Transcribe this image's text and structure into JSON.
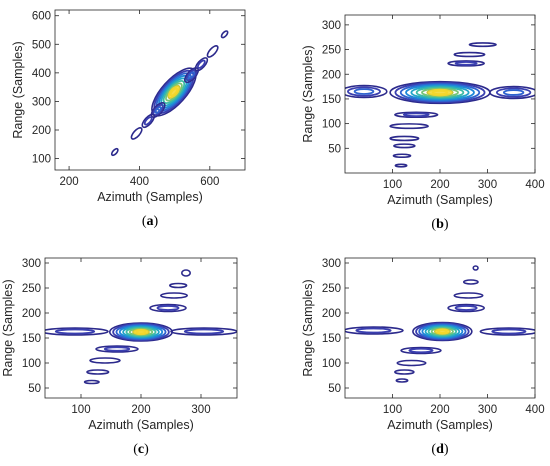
{
  "colors": {
    "levels": [
      "#2c2a8c",
      "#3a3fb0",
      "#2f63cf",
      "#1f87d8",
      "#22a5c8",
      "#3dbba5",
      "#76c576",
      "#bcc23a",
      "#f3d72d"
    ],
    "axes": "#262626"
  },
  "chart_data": [
    {
      "panel": "(a)",
      "caption_letter": "a",
      "type": "contour",
      "xlabel": "Azimuth (Samples)",
      "ylabel": "Range (Samples)",
      "xlim": [
        160,
        700
      ],
      "ylim": [
        60,
        620
      ],
      "xticks": [
        200,
        400,
        600
      ],
      "yticks": [
        100,
        200,
        300,
        400,
        500,
        600
      ],
      "blobs": [
        {
          "x": 498,
          "y": 333,
          "rx": 30,
          "ry": 12,
          "angle": 48,
          "levels": 9
        },
        {
          "x": 548,
          "y": 392,
          "rx": 9,
          "ry": 4,
          "angle": 48,
          "levels": 3
        },
        {
          "x": 576,
          "y": 430,
          "rx": 8,
          "ry": 3.5,
          "angle": 48,
          "levels": 2
        },
        {
          "x": 608,
          "y": 475,
          "rx": 7,
          "ry": 3,
          "angle": 48,
          "levels": 1
        },
        {
          "x": 642,
          "y": 535,
          "rx": 4,
          "ry": 2,
          "angle": 48,
          "levels": 1
        },
        {
          "x": 453,
          "y": 270,
          "rx": 9,
          "ry": 4,
          "angle": 48,
          "levels": 3
        },
        {
          "x": 425,
          "y": 232,
          "rx": 8,
          "ry": 3.5,
          "angle": 48,
          "levels": 2
        },
        {
          "x": 392,
          "y": 188,
          "rx": 7,
          "ry": 3,
          "angle": 48,
          "levels": 1
        },
        {
          "x": 330,
          "y": 123,
          "rx": 4,
          "ry": 2,
          "angle": 48,
          "levels": 1
        }
      ]
    },
    {
      "panel": "(b)",
      "caption_letter": "b",
      "type": "contour",
      "xlabel": "Azimuth (Samples)",
      "ylabel": "Range (Samples)",
      "xlim": [
        0,
        400
      ],
      "ylim": [
        0,
        320
      ],
      "xticks": [
        100,
        200,
        300,
        400
      ],
      "yticks": [
        50,
        100,
        150,
        200,
        250,
        300
      ],
      "blobs": [
        {
          "x": 200,
          "y": 163,
          "rx": 105,
          "ry": 22,
          "angle": 0,
          "levels": 9
        },
        {
          "x": 40,
          "y": 165,
          "rx": 48,
          "ry": 12,
          "angle": 0,
          "levels": 3
        },
        {
          "x": 355,
          "y": 163,
          "rx": 50,
          "ry": 12,
          "angle": 0,
          "levels": 3
        },
        {
          "x": 255,
          "y": 222,
          "rx": 38,
          "ry": 5,
          "angle": 0,
          "levels": 2
        },
        {
          "x": 262,
          "y": 240,
          "rx": 32,
          "ry": 4,
          "angle": 0,
          "levels": 1
        },
        {
          "x": 290,
          "y": 260,
          "rx": 28,
          "ry": 3.5,
          "angle": 0,
          "levels": 1
        },
        {
          "x": 150,
          "y": 118,
          "rx": 45,
          "ry": 5,
          "angle": 0,
          "levels": 2
        },
        {
          "x": 135,
          "y": 95,
          "rx": 40,
          "ry": 4.5,
          "angle": 0,
          "levels": 1
        },
        {
          "x": 125,
          "y": 70,
          "rx": 30,
          "ry": 4,
          "angle": 0,
          "levels": 1
        },
        {
          "x": 125,
          "y": 55,
          "rx": 22,
          "ry": 3.5,
          "angle": 0,
          "levels": 1
        },
        {
          "x": 120,
          "y": 35,
          "rx": 18,
          "ry": 3,
          "angle": 0,
          "levels": 1
        },
        {
          "x": 118,
          "y": 15,
          "rx": 12,
          "ry": 2.5,
          "angle": 0,
          "levels": 1
        }
      ]
    },
    {
      "panel": "(c)",
      "caption_letter": "c",
      "type": "contour",
      "xlabel": "Azimuth (Samples)",
      "ylabel": "Range (Samples)",
      "xlim": [
        40,
        360
      ],
      "ylim": [
        30,
        310
      ],
      "xticks": [
        100,
        200,
        300
      ],
      "yticks": [
        50,
        100,
        150,
        200,
        250,
        300
      ],
      "blobs": [
        {
          "x": 200,
          "y": 162,
          "rx": 52,
          "ry": 18,
          "angle": 0,
          "levels": 9
        },
        {
          "x": 90,
          "y": 163,
          "rx": 55,
          "ry": 7,
          "angle": 0,
          "levels": 2
        },
        {
          "x": 305,
          "y": 163,
          "rx": 55,
          "ry": 7,
          "angle": 0,
          "levels": 2
        },
        {
          "x": 245,
          "y": 210,
          "rx": 30,
          "ry": 7,
          "angle": 0,
          "levels": 2
        },
        {
          "x": 255,
          "y": 235,
          "rx": 22,
          "ry": 5,
          "angle": 0,
          "levels": 1
        },
        {
          "x": 262,
          "y": 255,
          "rx": 14,
          "ry": 4,
          "angle": 0,
          "levels": 1
        },
        {
          "x": 275,
          "y": 280,
          "rx": 7,
          "ry": 6,
          "angle": 0,
          "levels": 1
        },
        {
          "x": 160,
          "y": 128,
          "rx": 35,
          "ry": 6,
          "angle": 0,
          "levels": 2
        },
        {
          "x": 140,
          "y": 105,
          "rx": 25,
          "ry": 5,
          "angle": 0,
          "levels": 1
        },
        {
          "x": 128,
          "y": 82,
          "rx": 18,
          "ry": 4,
          "angle": 0,
          "levels": 1
        },
        {
          "x": 118,
          "y": 62,
          "rx": 12,
          "ry": 3,
          "angle": 0,
          "levels": 1
        }
      ]
    },
    {
      "panel": "(d)",
      "caption_letter": "d",
      "type": "contour",
      "xlabel": "Azimuth (Samples)",
      "ylabel": "Range (Samples)",
      "xlim": [
        0,
        400
      ],
      "ylim": [
        30,
        310
      ],
      "xticks": [
        100,
        200,
        300,
        400
      ],
      "yticks": [
        50,
        100,
        150,
        200,
        250,
        300
      ],
      "blobs": [
        {
          "x": 205,
          "y": 163,
          "rx": 62,
          "ry": 18,
          "angle": 0,
          "levels": 9
        },
        {
          "x": 60,
          "y": 165,
          "rx": 62,
          "ry": 7,
          "angle": 0,
          "levels": 2
        },
        {
          "x": 345,
          "y": 163,
          "rx": 60,
          "ry": 7,
          "angle": 0,
          "levels": 2
        },
        {
          "x": 255,
          "y": 210,
          "rx": 38,
          "ry": 7,
          "angle": 0,
          "levels": 2
        },
        {
          "x": 260,
          "y": 235,
          "rx": 30,
          "ry": 5,
          "angle": 0,
          "levels": 1
        },
        {
          "x": 265,
          "y": 262,
          "rx": 15,
          "ry": 4,
          "angle": 0,
          "levels": 1
        },
        {
          "x": 275,
          "y": 290,
          "rx": 5,
          "ry": 4,
          "angle": 0,
          "levels": 1
        },
        {
          "x": 160,
          "y": 125,
          "rx": 42,
          "ry": 6,
          "angle": 0,
          "levels": 2
        },
        {
          "x": 140,
          "y": 100,
          "rx": 30,
          "ry": 5,
          "angle": 0,
          "levels": 1
        },
        {
          "x": 125,
          "y": 82,
          "rx": 20,
          "ry": 4,
          "angle": 0,
          "levels": 1
        },
        {
          "x": 120,
          "y": 65,
          "rx": 12,
          "ry": 3,
          "angle": 0,
          "levels": 1
        }
      ]
    }
  ]
}
